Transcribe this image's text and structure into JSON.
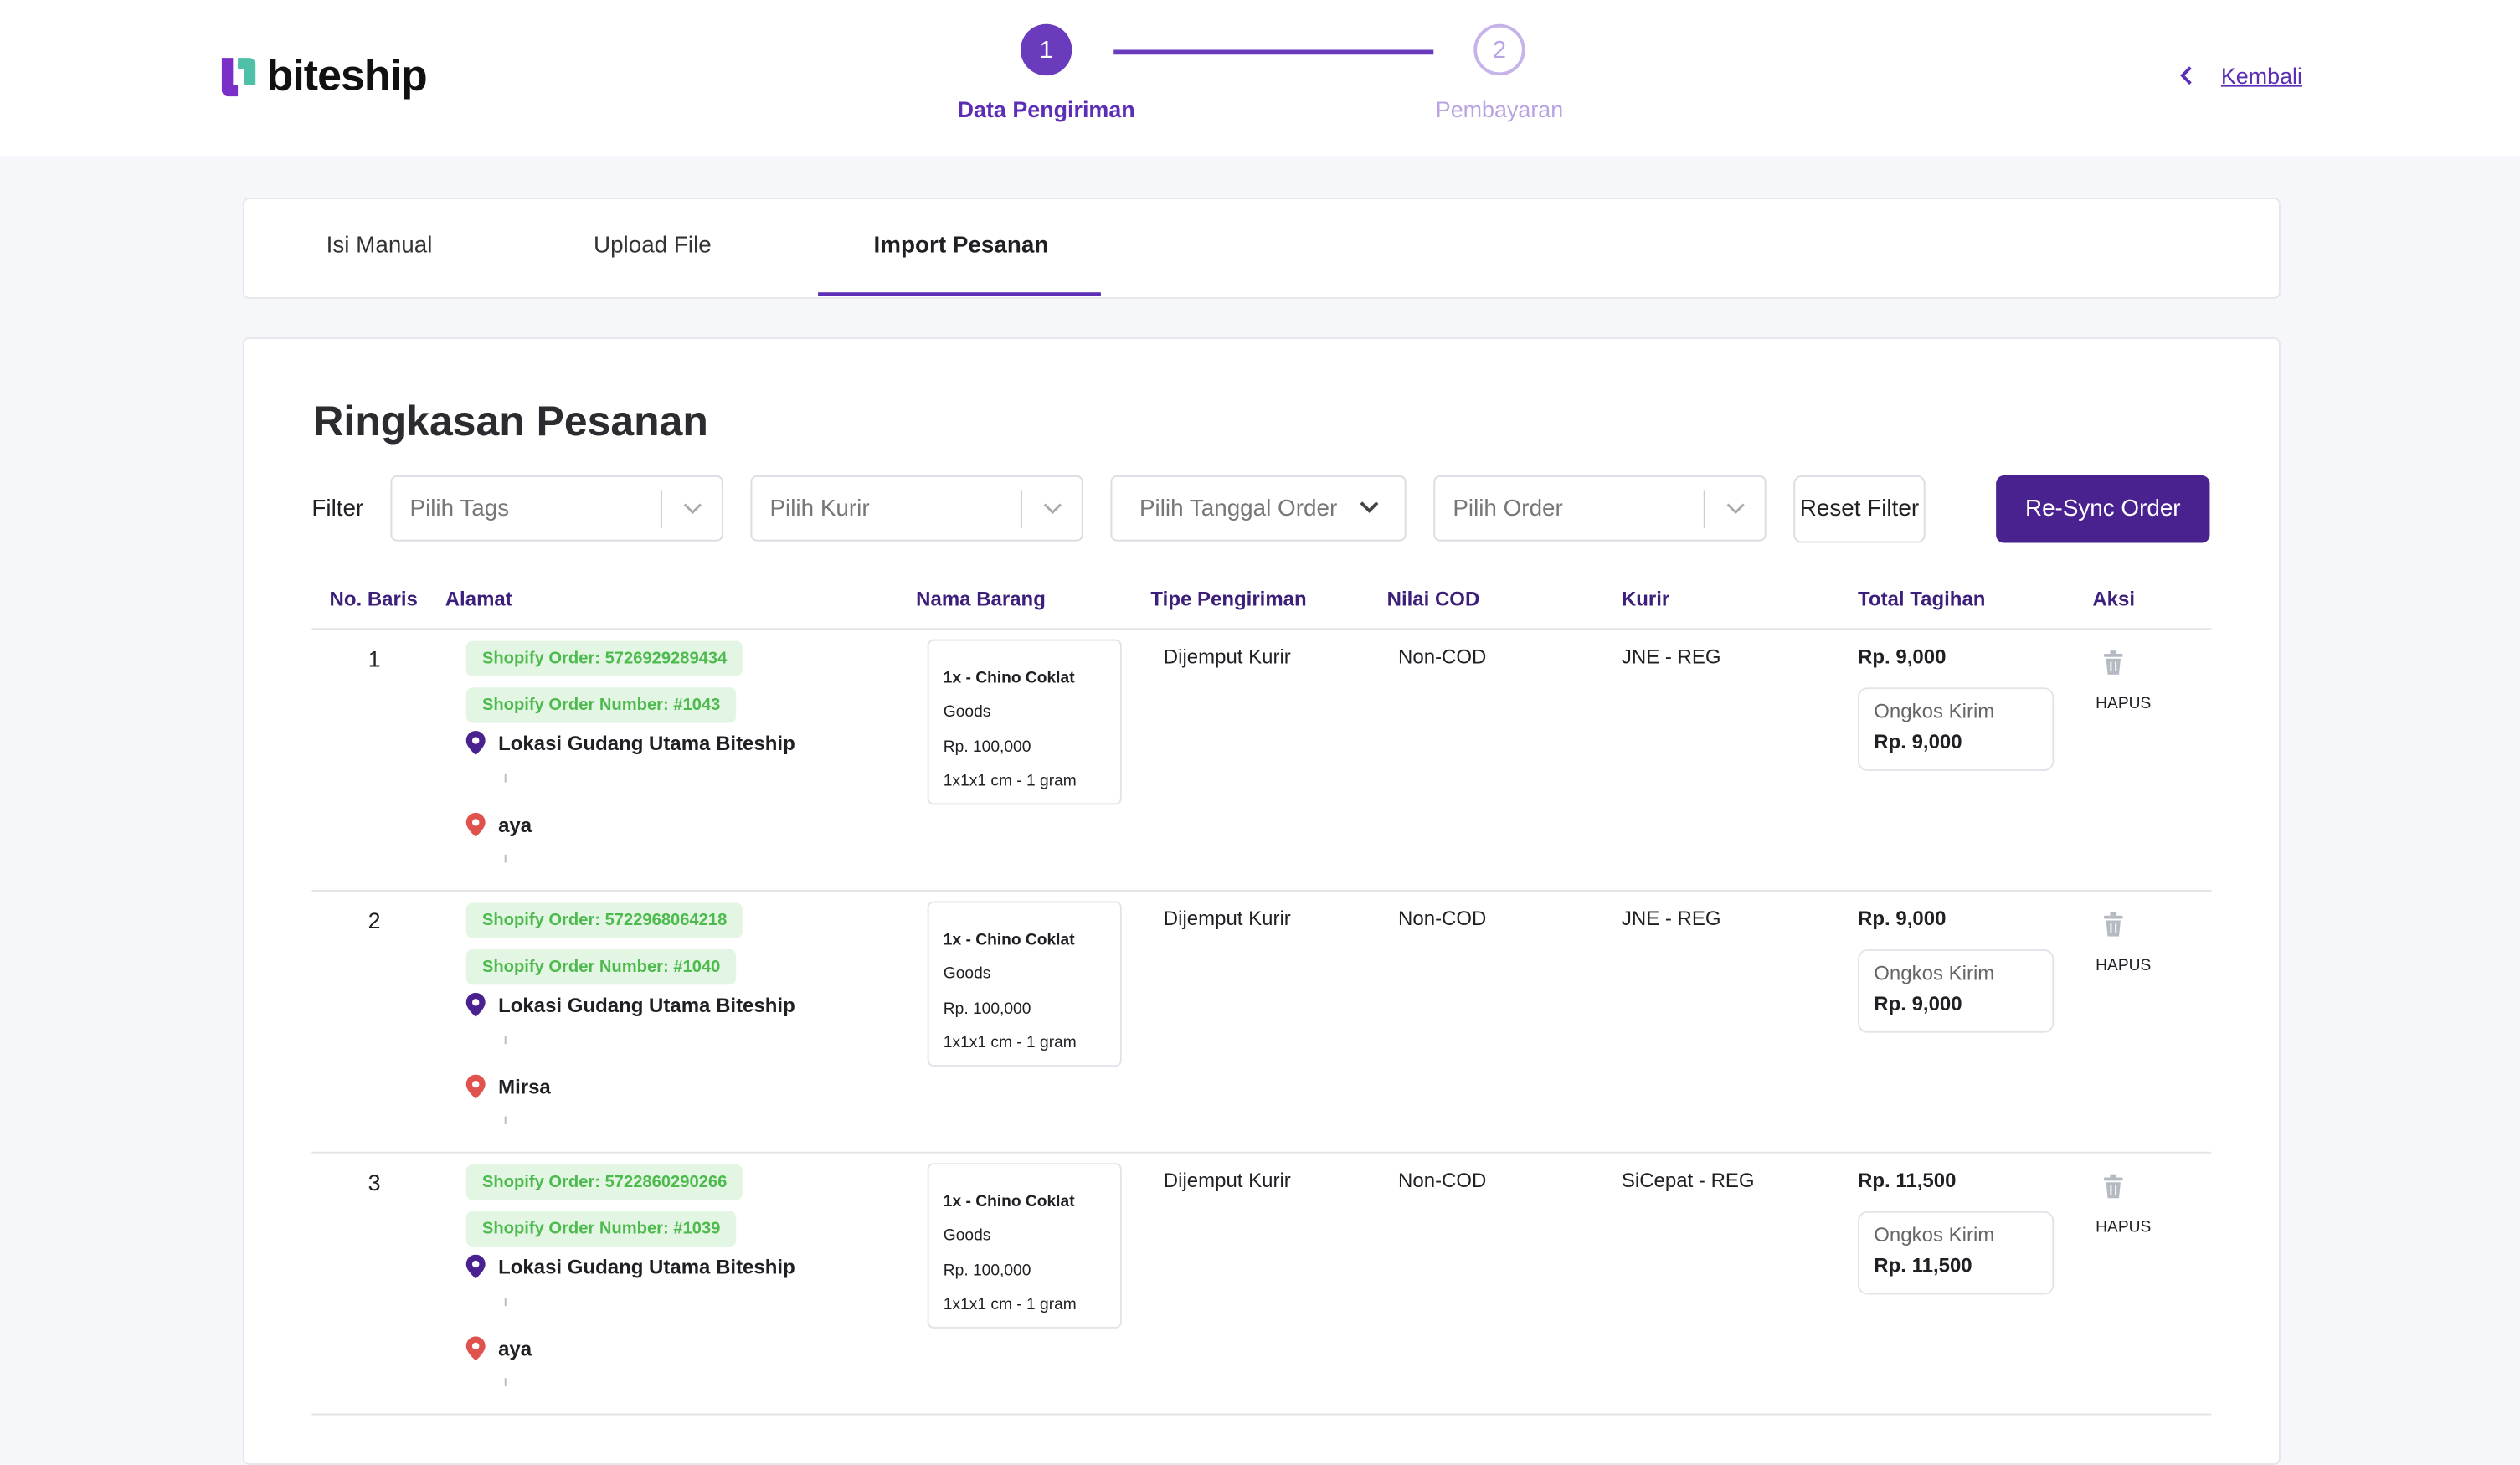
{
  "header": {
    "logo": "biteship",
    "steps": [
      {
        "number": "1",
        "label": "Data Pengiriman"
      },
      {
        "number": "2",
        "label": "Pembayaran"
      }
    ],
    "back_label": "Kembali"
  },
  "tabs": [
    {
      "label": "Isi Manual"
    },
    {
      "label": "Upload File"
    },
    {
      "label": "Import Pesanan"
    }
  ],
  "main": {
    "title": "Ringkasan Pesanan",
    "filter_label": "Filter",
    "filters": [
      {
        "placeholder": "Pilih Tags"
      },
      {
        "placeholder": "Pilih Kurir"
      },
      {
        "placeholder": "Pilih Tanggal Order"
      },
      {
        "placeholder": "Pilih Order"
      }
    ],
    "reset_label": "Reset Filter",
    "resync_label": "Re-Sync Order",
    "columns": [
      "No. Baris",
      "Alamat",
      "Nama Barang",
      "Tipe Pengiriman",
      "Nilai COD",
      "Kurir",
      "Total Tagihan",
      "Aksi"
    ],
    "rows": [
      {
        "no": "1",
        "shopify_order": "Shopify Order: 5726929289434",
        "shopify_number": "Shopify Order Number: #1043",
        "origin": "Lokasi Gudang Utama Biteship",
        "destination": "aya",
        "item_name": "1x - Chino Coklat",
        "item_type": "Goods",
        "item_price": "Rp. 100,000",
        "item_dim": "1x1x1 cm - 1 gram",
        "tipe": "Dijemput Kurir",
        "cod": "Non-COD",
        "kurir": "JNE - REG",
        "total": "Rp. 9,000",
        "ongkos_label": "Ongkos Kirim",
        "ongkos": "Rp. 9,000",
        "action": "HAPUS"
      },
      {
        "no": "2",
        "shopify_order": "Shopify Order: 5722968064218",
        "shopify_number": "Shopify Order Number: #1040",
        "origin": "Lokasi Gudang Utama Biteship",
        "destination": "Mirsa",
        "item_name": "1x - Chino Coklat",
        "item_type": "Goods",
        "item_price": "Rp. 100,000",
        "item_dim": "1x1x1 cm - 1 gram",
        "tipe": "Dijemput Kurir",
        "cod": "Non-COD",
        "kurir": "JNE - REG",
        "total": "Rp. 9,000",
        "ongkos_label": "Ongkos Kirim",
        "ongkos": "Rp. 9,000",
        "action": "HAPUS"
      },
      {
        "no": "3",
        "shopify_order": "Shopify Order: 5722860290266",
        "shopify_number": "Shopify Order Number: #1039",
        "origin": "Lokasi Gudang Utama Biteship",
        "destination": "aya",
        "item_name": "1x - Chino Coklat",
        "item_type": "Goods",
        "item_price": "Rp. 100,000",
        "item_dim": "1x1x1 cm - 1 gram",
        "tipe": "Dijemput Kurir",
        "cod": "Non-COD",
        "kurir": "SiCepat - REG",
        "total": "Rp. 11,500",
        "ongkos_label": "Ongkos Kirim",
        "ongkos": "Rp. 11,500",
        "action": "HAPUS"
      }
    ]
  },
  "colors": {
    "primary": "#4a2290",
    "accent": "#6a3bbd",
    "badge_bg": "#e3f6e3",
    "badge_text": "#4cba4c",
    "pin_origin": "#4a2290",
    "pin_dest": "#e0524d"
  }
}
